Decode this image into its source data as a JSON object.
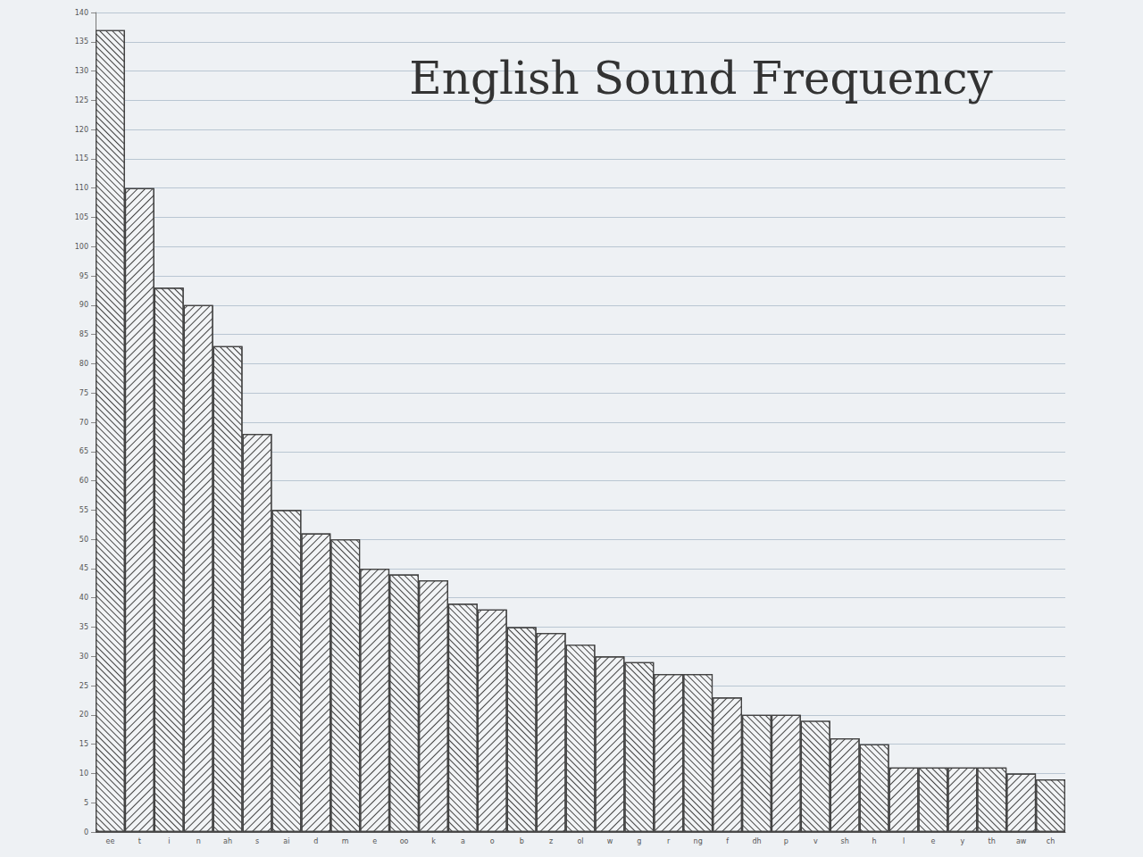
{
  "chart_data": {
    "type": "bar",
    "title": "English Sound Frequency",
    "categories": [
      "ee",
      "t",
      "i",
      "n",
      "ah",
      "s",
      "ai",
      "d",
      "m",
      "e",
      "oo",
      "k",
      "a",
      "o",
      "b",
      "z",
      "ol",
      "w",
      "g",
      "r",
      "ng",
      "f",
      "dh",
      "p",
      "v",
      "sh",
      "h",
      "l",
      "e",
      "y",
      "th",
      "aw",
      "ch"
    ],
    "values": [
      137,
      110,
      93,
      90,
      83,
      68,
      55,
      51,
      50,
      45,
      44,
      43,
      39,
      38,
      35,
      34,
      32,
      30,
      29,
      27,
      27,
      23,
      20,
      20,
      19,
      16,
      15,
      11,
      11,
      11,
      11,
      10,
      9
    ],
    "color": "#444444",
    "ylim": [
      0,
      140
    ],
    "yticks": [
      0,
      5,
      10,
      15,
      20,
      25,
      30,
      35,
      40,
      45,
      50,
      55,
      60,
      65,
      70,
      75,
      80,
      85,
      90,
      95,
      100,
      105,
      110,
      115,
      120,
      125,
      130,
      135,
      140
    ],
    "grid": true
  }
}
